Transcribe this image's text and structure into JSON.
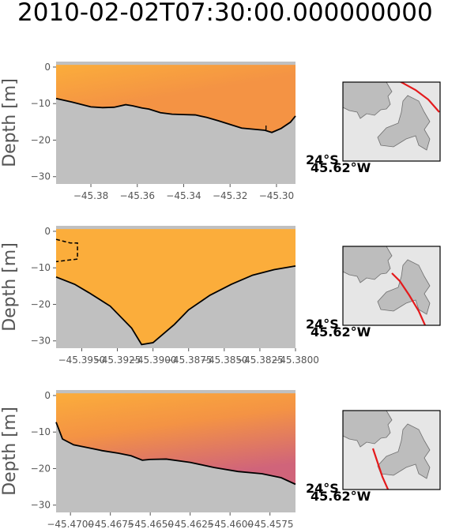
{
  "figure": {
    "title": "2010-02-02T07:30:00.000000000",
    "colors": {
      "water_light": "#fbad3b",
      "water_mid": "#f49344",
      "water_deep": "#d0647a",
      "land": "#c0c0c0",
      "map_sea": "#e6e6e6",
      "track": "#e41a1c"
    }
  },
  "chart_data": [
    {
      "type": "area",
      "title": "",
      "xlabel": "",
      "ylabel": "Depth [m]",
      "xlim": [
        -45.395,
        -45.2918
      ],
      "ylim": [
        -32,
        1.5
      ],
      "xticks": [
        -45.38,
        -45.36,
        -45.34,
        -45.32,
        -45.3
      ],
      "xtick_labels": [
        "−45.38",
        "−45.36",
        "−45.34",
        "−45.32",
        "−45.30"
      ],
      "yticks": [
        0,
        -10,
        -20,
        -30
      ],
      "ytick_labels": [
        "0",
        "−10",
        "−20",
        "−30"
      ],
      "bottom_profile": {
        "x": [
          -45.395,
          -45.388,
          -45.38,
          -45.375,
          -45.37,
          -45.365,
          -45.362,
          -45.358,
          -45.355,
          -45.35,
          -45.345,
          -45.34,
          -45.335,
          -45.33,
          -45.325,
          -45.32,
          -45.315,
          -45.31,
          -45.305,
          -45.302,
          -45.298,
          -45.294,
          -45.2918
        ],
        "y": [
          -8.6,
          -9.6,
          -10.9,
          -11.1,
          -11.0,
          -10.3,
          -10.6,
          -11.2,
          -11.5,
          -12.5,
          -12.9,
          -13.0,
          -13.1,
          -13.8,
          -14.7,
          -15.7,
          -16.7,
          -17.0,
          -17.3,
          -17.9,
          -16.8,
          -15.1,
          -13.4
        ]
      },
      "dashed_contour": null,
      "solid_contour": {
        "x": [
          -45.3045,
          -45.3045
        ],
        "y": [
          -16.0,
          -17.2
        ]
      },
      "gradient": "surface-to-bottom, deeper orange near middle-right",
      "map_label_lat": "24°S",
      "map_label_lon": "45.62°W",
      "track_in_map": "upper-right diagonal"
    },
    {
      "type": "area",
      "title": "",
      "xlabel": "",
      "ylabel": "Depth [m]",
      "xlim": [
        -45.3968,
        -45.38
      ],
      "ylim": [
        -32,
        1.5
      ],
      "xticks": [
        -45.395,
        -45.3925,
        -45.39,
        -45.3875,
        -45.385,
        -45.3825,
        -45.38
      ],
      "xtick_labels": [
        "−45.3950",
        "−45.3925",
        "−45.3900",
        "−45.3875",
        "−45.3850",
        "−45.3825",
        "−45.3800"
      ],
      "yticks": [
        0,
        -10,
        -20,
        -30
      ],
      "ytick_labels": [
        "0",
        "−10",
        "−20",
        "−30"
      ],
      "bottom_profile": {
        "x": [
          -45.3968,
          -45.3955,
          -45.3945,
          -45.393,
          -45.3915,
          -45.3908,
          -45.39,
          -45.3885,
          -45.3875,
          -45.386,
          -45.3845,
          -45.383,
          -45.3815,
          -45.38
        ],
        "y": [
          -12.5,
          -14.5,
          -16.8,
          -20.5,
          -26.5,
          -31.0,
          -30.5,
          -25.5,
          -21.5,
          -17.5,
          -14.5,
          -12.0,
          -10.5,
          -9.5
        ]
      },
      "dashed_contour": {
        "x": [
          -45.3968,
          -45.3958,
          -45.3953,
          -45.3953,
          -45.3968
        ],
        "y": [
          -2.2,
          -3.2,
          -3.2,
          -7.6,
          -8.3
        ]
      },
      "solid_contour": null,
      "gradient": "nearly uniform orange",
      "map_label_lat": "24°S",
      "map_label_lon": "45.62°W",
      "track_in_map": "center diagonal"
    },
    {
      "type": "area",
      "title": "",
      "xlabel": "",
      "ylabel": "Depth [m]",
      "xlim": [
        -45.4709,
        -45.4559
      ],
      "ylim": [
        -32,
        1.5
      ],
      "xticks": [
        -45.47,
        -45.4675,
        -45.465,
        -45.4625,
        -45.46,
        -45.4575
      ],
      "xtick_labels": [
        "−45.4700",
        "−45.4675",
        "−45.4650",
        "−45.4625",
        "−45.4600",
        "−45.4575"
      ],
      "yticks": [
        0,
        -10,
        -20,
        -30
      ],
      "ytick_labels": [
        "0",
        "−10",
        "−20",
        "−30"
      ],
      "bottom_profile": {
        "x": [
          -45.4709,
          -45.4705,
          -45.4698,
          -45.469,
          -45.468,
          -45.467,
          -45.4662,
          -45.4655,
          -45.465,
          -45.464,
          -45.4625,
          -45.461,
          -45.4595,
          -45.458,
          -45.4568,
          -45.4559
        ],
        "y": [
          -7.3,
          -11.9,
          -13.5,
          -14.2,
          -15.1,
          -15.8,
          -16.5,
          -17.7,
          -17.5,
          -17.4,
          -18.3,
          -19.7,
          -20.8,
          -21.4,
          -22.5,
          -24.3
        ]
      },
      "dashed_contour": null,
      "solid_contour": null,
      "gradient": "orange at top to pinkish red near bottom-right",
      "map_label_lat": "24°S",
      "map_label_lon": "45.62°W",
      "track_in_map": "lower-left diagonal"
    }
  ]
}
